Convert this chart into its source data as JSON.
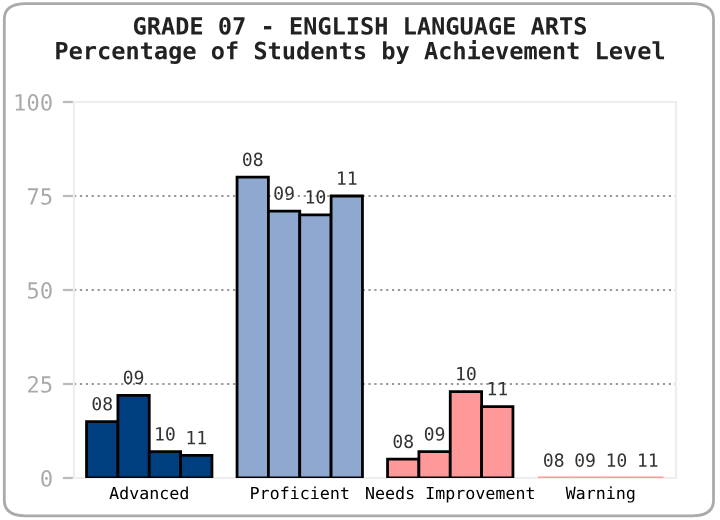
{
  "chart_data": {
    "type": "bar",
    "title": "GRADE 07 - ENGLISH LANGUAGE ARTS",
    "subtitle": "Percentage of Students by Achievement Level",
    "categories": [
      "Advanced",
      "Proficient",
      "Needs Improvement",
      "Warning"
    ],
    "series": [
      {
        "name": "08",
        "colors": [
          "#003f7f",
          "#8fa8cf",
          "#ff9999",
          "#ff9999"
        ],
        "values": [
          15,
          80,
          5,
          0
        ]
      },
      {
        "name": "09",
        "colors": [
          "#003f7f",
          "#8fa8cf",
          "#ff9999",
          "#ff9999"
        ],
        "values": [
          22,
          71,
          7,
          0
        ]
      },
      {
        "name": "10",
        "colors": [
          "#003f7f",
          "#8fa8cf",
          "#ff9999",
          "#ff9999"
        ],
        "values": [
          7,
          70,
          23,
          0
        ]
      },
      {
        "name": "11",
        "colors": [
          "#003f7f",
          "#8fa8cf",
          "#ff9999",
          "#ff9999"
        ],
        "values": [
          6,
          75,
          19,
          0
        ]
      }
    ],
    "ylim": [
      0,
      100
    ],
    "yticks": [
      0,
      25,
      50,
      75,
      100
    ],
    "grid": "y",
    "legend": false
  }
}
